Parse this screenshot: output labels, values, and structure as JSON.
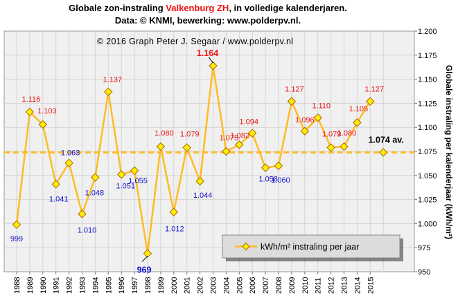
{
  "title": {
    "line1_pre": "Globale  zon-instraling  ",
    "line1_highlight": "Valkenburg  ZH",
    "line1_post": ", in volledige kalenderjaren.",
    "line2": "Data: © KNMI,  bewerking:  www.polderpv.nl."
  },
  "chart_data": {
    "type": "line",
    "credit": "© 2016  Graph   Peter J. Segaar / www.polderpv.nl",
    "ylabel": "Globale instraling per kalenderjaar (kWh/m²)",
    "xlabel": "",
    "ylim": [
      950,
      1200
    ],
    "ytick_step": 25,
    "y_tick_labels": [
      "950",
      "975",
      "1.000",
      "1.025",
      "1.050",
      "1.075",
      "1.100",
      "1.125",
      "1.150",
      "1.175",
      "1.200"
    ],
    "grid": true,
    "categories": [
      "1988",
      "1989",
      "1990",
      "1991",
      "1992",
      "1993",
      "1994",
      "1995",
      "1996",
      "1997",
      "1998",
      "1999",
      "2000",
      "2001",
      "2002",
      "2003",
      "2004",
      "2005",
      "2006",
      "2007",
      "2008",
      "2009",
      "2010",
      "2011",
      "2012",
      "2013",
      "2014",
      "2015"
    ],
    "series": [
      {
        "name": "kWh/m² instraling per jaar",
        "color": "#ffbb22",
        "marker_fill": "#ffee00",
        "marker_stroke": "#aa6600",
        "values": [
          999,
          1116,
          1103,
          1041,
          1063,
          1010,
          1048,
          1137,
          1051,
          1055,
          969,
          1080,
          1012,
          1079,
          1044,
          1164,
          1075,
          1082,
          1094,
          1058,
          1060,
          1127,
          1096,
          1110,
          1079,
          1080,
          1105,
          1127
        ],
        "labels": [
          "999",
          "1.116",
          "1.103",
          "1.041",
          "1.063",
          "1.010",
          "1.048",
          "1.137",
          "1.051",
          "1.055",
          "969",
          "1.080",
          "1.012",
          "1.079",
          "1.044",
          "1.164",
          "1.075",
          "1.082",
          "1.094",
          "1.058",
          "1.060",
          "1.127",
          "1.096",
          "1.110",
          "1.079",
          "1.080",
          "1.105",
          "1.127"
        ],
        "label_colors": [
          "blue",
          "red",
          "red",
          "blue",
          "blue",
          "blue",
          "blue",
          "red",
          "blue",
          "blue",
          "blue",
          "red",
          "blue",
          "red",
          "blue",
          "red",
          "red",
          "red",
          "red",
          "blue",
          "blue",
          "red",
          "red",
          "red",
          "red",
          "red",
          "red",
          "red"
        ]
      }
    ],
    "average": {
      "value": 1074,
      "label": "1.074 av.",
      "color": "#ffbb22"
    },
    "max_label": "1.164",
    "min_label": "969",
    "legend": {
      "position": "bottom-right",
      "label": "kWh/m² instraling per jaar"
    }
  }
}
